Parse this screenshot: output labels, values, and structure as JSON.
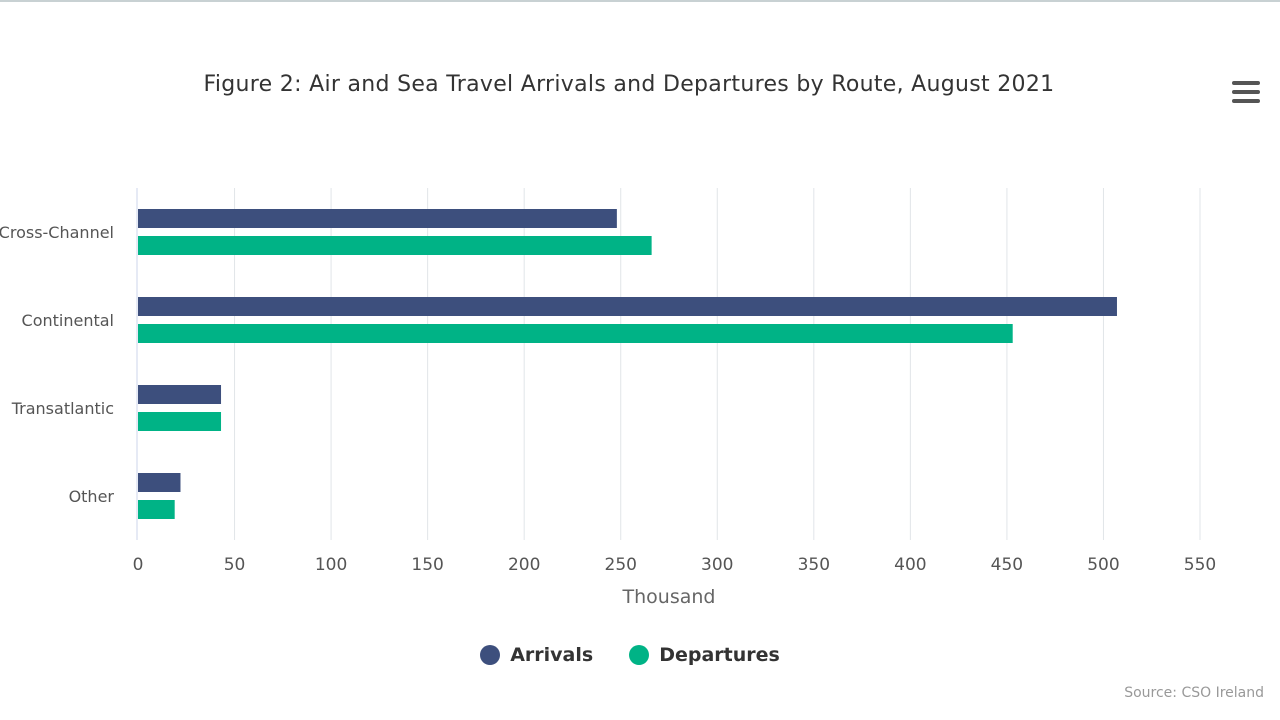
{
  "title": "Figure 2: Air and Sea Travel Arrivals and Departures by Route, August 2021",
  "menu_icon": "hamburger-menu-icon",
  "credits": "Source: CSO Ireland",
  "colors": {
    "arrivals": "#3d4f7d",
    "departures": "#00b386",
    "grid": "#e1e5e8",
    "axis_text": "#555555"
  },
  "legend": [
    {
      "label": "Arrivals",
      "color": "#3d4f7d"
    },
    {
      "label": "Departures",
      "color": "#00b386"
    }
  ],
  "chart_data": {
    "type": "bar",
    "orientation": "horizontal",
    "title": "Figure 2: Air and Sea Travel Arrivals and Departures by Route, August 2021",
    "categories": [
      "Cross-Channel",
      "Continental",
      "Transatlantic",
      "Other"
    ],
    "series": [
      {
        "name": "Arrivals",
        "color": "#3d4f7d",
        "values": [
          248,
          507,
          43,
          22
        ]
      },
      {
        "name": "Departures",
        "color": "#00b386",
        "values": [
          266,
          453,
          43,
          19
        ]
      }
    ],
    "xlabel": "Thousand",
    "ylabel": "",
    "xlim": [
      0,
      550
    ],
    "ticks": [
      0,
      50,
      100,
      150,
      200,
      250,
      300,
      350,
      400,
      450,
      500,
      550
    ],
    "tick_labels": [
      "0",
      "50",
      "100",
      "150",
      "200",
      "250",
      "300",
      "350",
      "400",
      "450",
      "500",
      "550"
    ],
    "grid": true,
    "legend_position": "bottom"
  }
}
